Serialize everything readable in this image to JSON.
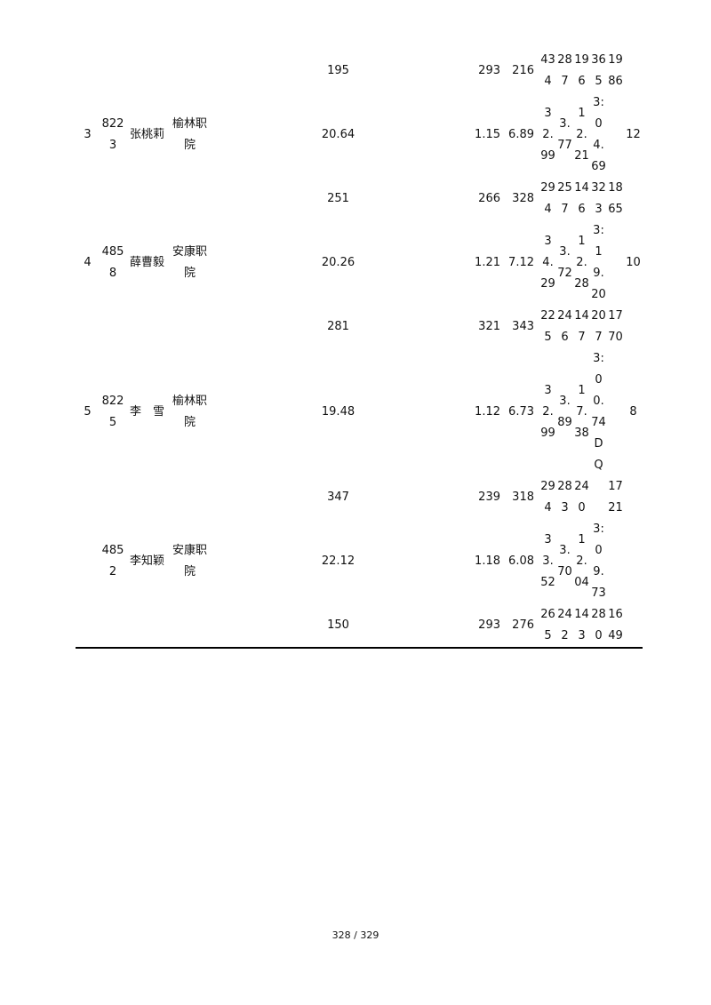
{
  "table": {
    "rows": [
      [
        "",
        "",
        "",
        "",
        "195",
        "293",
        "216",
        "434",
        "287",
        "196",
        "365",
        "1986",
        ""
      ],
      [
        "3",
        "8223",
        "张桃莉",
        "榆林职院",
        "20.64",
        "1.15",
        "6.89",
        "32.99",
        "3.77",
        "12.21",
        "3:04.69",
        "",
        "12"
      ],
      [
        "",
        "",
        "",
        "",
        "251",
        "266",
        "328",
        "294",
        "257",
        "146",
        "323",
        "1865",
        ""
      ],
      [
        "4",
        "4858",
        "薛曹毅",
        "安康职院",
        "20.26",
        "1.21",
        "7.12",
        "34.29",
        "3.72",
        "12.28",
        "3:19.20",
        "",
        "10"
      ],
      [
        "",
        "",
        "",
        "",
        "281",
        "321",
        "343",
        "225",
        "246",
        "147",
        "207",
        "1770",
        ""
      ],
      [
        "5",
        "8225",
        "李　雪",
        "榆林职院",
        "19.48",
        "1.12",
        "6.73",
        "32.99",
        "3.89",
        "17.38",
        "3:00.74DQ",
        "",
        "8"
      ],
      [
        "",
        "",
        "",
        "",
        "347",
        "239",
        "318",
        "294",
        "283",
        "240",
        "",
        "1721",
        ""
      ],
      [
        "",
        "4852",
        "李知颖",
        "安康职院",
        "22.12",
        "1.18",
        "6.08",
        "33.52",
        "3.70",
        "12.04",
        "3:09.73",
        "",
        ""
      ],
      [
        "",
        "",
        "",
        "",
        "150",
        "293",
        "276",
        "265",
        "242",
        "143",
        "280",
        "1649",
        ""
      ]
    ]
  },
  "footer": {
    "page_number": "328 / 329"
  }
}
